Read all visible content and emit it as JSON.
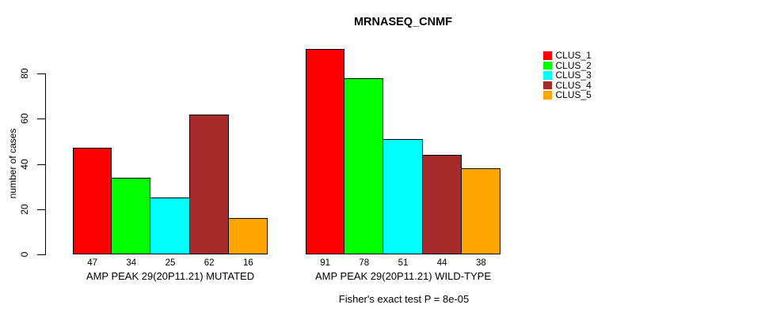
{
  "chart_data": {
    "type": "bar",
    "title": "MRNASEQ_CNMF",
    "ylabel": "number of cases",
    "xlabel": "",
    "annotation": "Fisher's exact test P = 8e-05",
    "yticks": [
      0,
      20,
      40,
      60,
      80
    ],
    "ylim": [
      0,
      95
    ],
    "grid": false,
    "legend_position": "right-outside",
    "series_names": [
      "CLUS_1",
      "CLUS_2",
      "CLUS_3",
      "CLUS_4",
      "CLUS_5"
    ],
    "series_colors": [
      "#FF0000",
      "#00FF00",
      "#00FFFF",
      "#A52A2A",
      "#FFA500"
    ],
    "bar_border_color": "#000000",
    "groups": [
      {
        "label": "AMP PEAK 29(20P11.21) MUTATED",
        "values": [
          47,
          34,
          25,
          62,
          16
        ]
      },
      {
        "label": "AMP PEAK 29(20P11.21) WILD-TYPE",
        "values": [
          91,
          78,
          51,
          44,
          38
        ]
      }
    ]
  }
}
